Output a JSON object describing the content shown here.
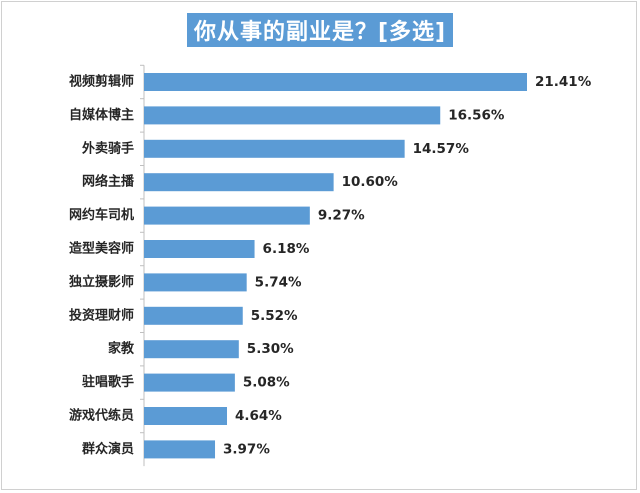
{
  "chart_data": {
    "type": "bar",
    "orientation": "horizontal",
    "title": "你从事的副业是？[多选]",
    "categories": [
      "视频剪辑师",
      "自媒体博主",
      "外卖骑手",
      "网络主播",
      "网约车司机",
      "造型美容师",
      "独立摄影师",
      "投资理财师",
      "家教",
      "驻唱歌手",
      "游戏代练员",
      "群众演员"
    ],
    "values": [
      21.41,
      16.56,
      14.57,
      10.6,
      9.27,
      6.18,
      5.74,
      5.52,
      5.3,
      5.08,
      4.64,
      3.97
    ],
    "value_labels": [
      "21.41%",
      "16.56%",
      "14.57%",
      "10.60%",
      "9.27%",
      "6.18%",
      "5.74%",
      "5.52%",
      "5.30%",
      "5.08%",
      "4.64%",
      "3.97%"
    ],
    "value_unit": "%",
    "xlim": [
      0,
      21.41
    ],
    "grid": false,
    "legend": "none",
    "bar_color": "#5b9bd5",
    "title_bg_color": "#5b9bd5"
  }
}
